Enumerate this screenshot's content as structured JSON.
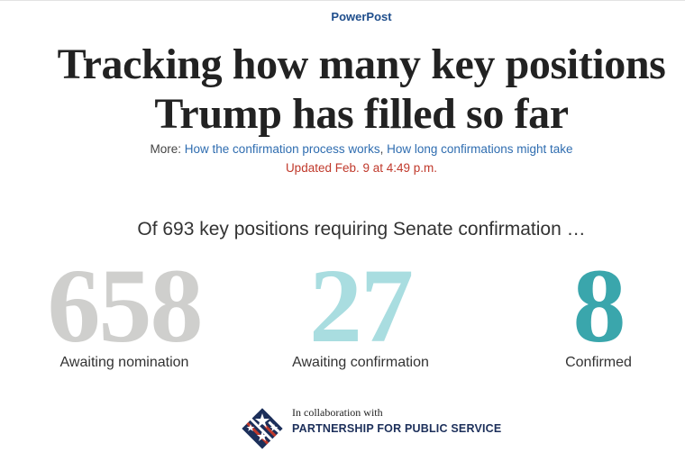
{
  "header": {
    "kicker": "PowerPost",
    "headline_line1": "Tracking how many key positions",
    "headline_line2": "Trump has filled so far"
  },
  "more": {
    "prefix": "More: ",
    "link1": "How the confirmation process works",
    "separator": ", ",
    "link2": "How long confirmations might take"
  },
  "updated": "Updated Feb. 9 at 4:49 p.m.",
  "summary": {
    "lead": "Of 693 key positions requiring Senate confirmation …",
    "stats": [
      {
        "value": "658",
        "label": "Awaiting nomination",
        "color": "#cfcfcd"
      },
      {
        "value": "27",
        "label": "Awaiting confirmation",
        "color": "#a9dde0"
      },
      {
        "value": "8",
        "label": "Confirmed",
        "color": "#3aa6ac"
      }
    ]
  },
  "footer": {
    "collab_text": "In collaboration with",
    "partner_name": "PARTNERSHIP FOR PUBLIC SERVICE",
    "logo_icon": "partnership-star-logo-icon"
  }
}
